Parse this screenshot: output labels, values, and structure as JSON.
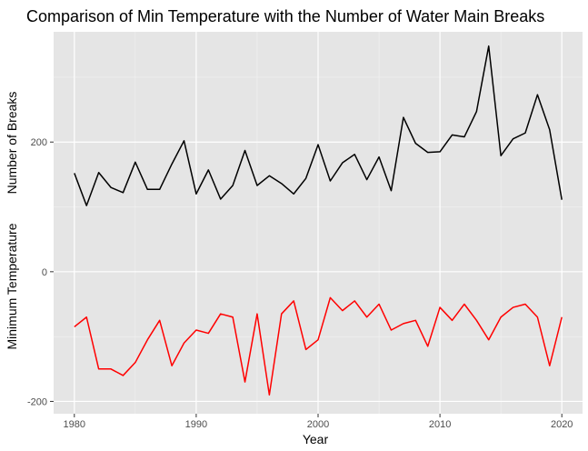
{
  "chart_data": {
    "type": "line",
    "title": "Comparison of Min Temperature with the Number of Water Main Breaks",
    "xlabel": "Year",
    "ylabel_upper": "Number of Breaks",
    "ylabel_lower": "Minimum Temperature",
    "xlim": [
      1978.3,
      2021.7
    ],
    "ylim": [
      -219,
      370
    ],
    "x_ticks": [
      1980,
      1990,
      2000,
      2010,
      2020
    ],
    "y_ticks": [
      -200,
      0,
      200
    ],
    "x_tick_labels": [
      "1980",
      "1990",
      "2000",
      "2010",
      "2020"
    ],
    "y_tick_labels": [
      "-200",
      "0",
      "200"
    ],
    "grid": true,
    "background": "#e5e5e5",
    "x": [
      1980,
      1981,
      1982,
      1983,
      1984,
      1985,
      1986,
      1987,
      1988,
      1989,
      1990,
      1991,
      1992,
      1993,
      1994,
      1995,
      1996,
      1997,
      1998,
      1999,
      2000,
      2001,
      2002,
      2003,
      2004,
      2005,
      2006,
      2007,
      2008,
      2009,
      2010,
      2011,
      2012,
      2013,
      2014,
      2015,
      2016,
      2017,
      2018,
      2019,
      2020
    ],
    "series": [
      {
        "color": "#000000",
        "values": [
          152,
          102,
          153,
          130,
          122,
          169,
          127,
          127,
          166,
          202,
          120,
          157,
          112,
          133,
          187,
          133,
          148,
          136,
          120,
          144,
          196,
          140,
          168,
          181,
          142,
          177,
          125,
          238,
          198,
          184,
          185,
          211,
          208,
          247,
          348,
          179,
          205,
          214,
          273,
          219,
          111
        ]
      },
      {
        "color": "#ff0000",
        "values": [
          -85,
          -70,
          -150,
          -150,
          -160,
          -140,
          -105,
          -75,
          -145,
          -110,
          -90,
          -95,
          -65,
          -70,
          -170,
          -65,
          -190,
          -65,
          -45,
          -120,
          -105,
          -40,
          -60,
          -45,
          -70,
          -50,
          -90,
          -80,
          -75,
          -115,
          -55,
          -75,
          -50,
          -75,
          -105,
          -70,
          -55,
          -50,
          -70,
          -145,
          -70
        ]
      }
    ]
  }
}
